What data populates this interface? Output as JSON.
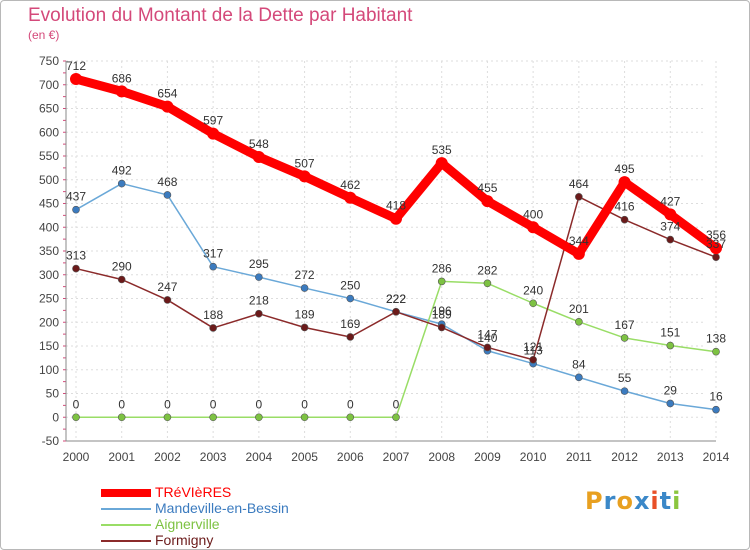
{
  "title": "Evolution du Montant de la Dette par Habitant",
  "subtitle": "(en €)",
  "logo": [
    "P",
    "r",
    "o",
    "x",
    "i",
    "t",
    "i"
  ],
  "logo_colors": [
    "#e8a020",
    "#3b88c8",
    "#e8a020",
    "#3b88c8",
    "#e85028",
    "#3b88c8",
    "#8cc63f"
  ],
  "colors": {
    "title": "#d4497a",
    "axis": "#444444",
    "grid": "#dddddd"
  },
  "chart_data": {
    "type": "line",
    "x": [
      "2000",
      "2001",
      "2002",
      "2003",
      "2004",
      "2005",
      "2006",
      "2007",
      "2008",
      "2009",
      "2010",
      "2011",
      "2012",
      "2013",
      "2014"
    ],
    "ylim": [
      -50,
      750
    ],
    "yticks": [
      -50,
      0,
      50,
      100,
      150,
      200,
      250,
      300,
      350,
      400,
      450,
      500,
      550,
      600,
      650,
      700,
      750
    ],
    "grid": true,
    "legend_position": "bottom-left",
    "series": [
      {
        "name": "TRéVIèRES",
        "color": "#ff0000",
        "marker": "#ff0000",
        "values": [
          712,
          686,
          654,
          597,
          548,
          507,
          462,
          418,
          535,
          455,
          400,
          344,
          495,
          427,
          356
        ],
        "labels": [
          "712",
          "686",
          "654",
          "597",
          "548",
          "507",
          "462",
          "418",
          "535",
          "455",
          "400",
          "344",
          "495",
          "427",
          "356"
        ]
      },
      {
        "name": "Mandeville-en-Bessin",
        "color": "#6aa8d8",
        "marker": "#3b7bbf",
        "values": [
          437,
          492,
          468,
          317,
          295,
          272,
          250,
          222,
          196,
          140,
          113,
          84,
          55,
          29,
          16
        ],
        "labels": [
          "437",
          "492",
          "468",
          "317",
          "295",
          "272",
          "250",
          "222",
          "196",
          "140",
          "113",
          "84",
          "55",
          "29",
          "16"
        ]
      },
      {
        "name": "Aignerville",
        "color": "#99dd66",
        "marker": "#7dc242",
        "values": [
          0,
          0,
          0,
          0,
          0,
          0,
          0,
          0,
          286,
          282,
          240,
          201,
          167,
          151,
          138
        ],
        "labels": [
          "0",
          "0",
          "0",
          "0",
          "0",
          "0",
          "0",
          "0",
          "286",
          "282",
          "240",
          "201",
          "167",
          "151",
          "138"
        ]
      },
      {
        "name": "Formigny",
        "color": "#8b2a2a",
        "marker": "#6b1a1a",
        "values": [
          313,
          290,
          247,
          188,
          218,
          189,
          169,
          222,
          189,
          147,
          121,
          464,
          416,
          374,
          337
        ],
        "labels": [
          "313",
          "290",
          "247",
          "188",
          "218",
          "189",
          "169",
          "222",
          "189",
          "147",
          "121",
          "464",
          "416",
          "374",
          "337"
        ]
      }
    ]
  }
}
